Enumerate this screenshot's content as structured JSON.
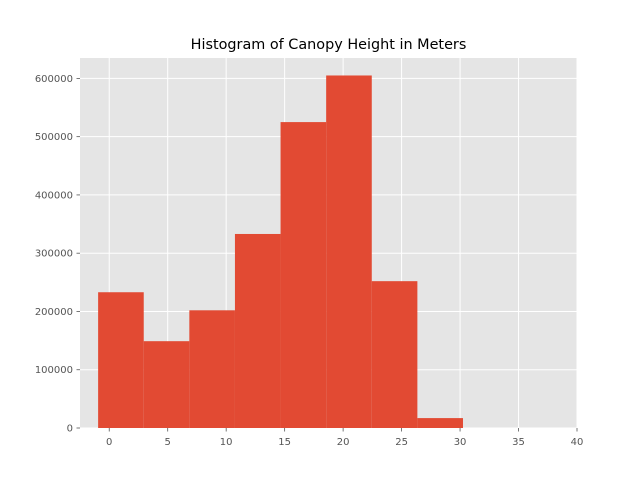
{
  "chart_data": {
    "type": "bar",
    "title": "Histogram of Canopy Height in Meters",
    "xlabel": "",
    "ylabel": "",
    "xlim": [
      -2.5,
      40
    ],
    "ylim": [
      0,
      635000
    ],
    "x_ticks": [
      0,
      5,
      10,
      15,
      20,
      25,
      30,
      35,
      40
    ],
    "y_ticks": [
      0,
      100000,
      200000,
      300000,
      400000,
      500000,
      600000
    ],
    "grid": true,
    "bin_edges": [
      -0.95,
      2.95,
      6.85,
      10.75,
      14.65,
      18.55,
      22.45,
      26.35,
      30.25
    ],
    "values": [
      233000,
      149000,
      202000,
      333000,
      525000,
      605000,
      252000,
      17000
    ],
    "bar_color": "#e24a33",
    "background_color": "#e5e5e5",
    "grid_color": "#ffffff"
  }
}
